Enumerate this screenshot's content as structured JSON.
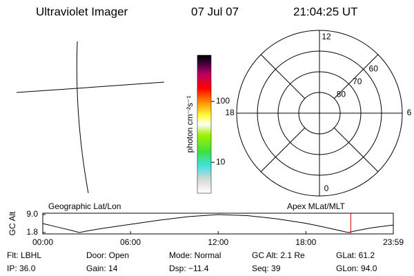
{
  "header": {
    "title": "Ultraviolet Imager",
    "date": "07 Jul 07",
    "time": "21:04:25 UT"
  },
  "colorbar": {
    "label": "photon cm⁻²s⁻¹",
    "log": true,
    "clim": [
      3.1,
      575
    ],
    "ticks": [
      100,
      10
    ]
  },
  "polar": {
    "mlt_ticks": [
      12,
      6,
      18,
      0
    ],
    "lat_lim": [
      50,
      90
    ],
    "lat_rings": [
      60,
      70,
      80
    ]
  },
  "chart_data": {
    "type": "line",
    "ylabel": "GC Alt",
    "left_label": "Geographic Lat/Lon",
    "right_label": "Apex MLat/MLT",
    "x": [
      0,
      1,
      2,
      2.5,
      3,
      4,
      6,
      8,
      10,
      12,
      14,
      16,
      18,
      19,
      20,
      20.9,
      21.5,
      22.5,
      23.98
    ],
    "series": [
      {
        "name": "GC Alt",
        "color": "#000000",
        "values": [
          5.4,
          4.0,
          2.6,
          1.8,
          2.4,
          3.4,
          5.1,
          6.8,
          8.2,
          9.0,
          8.6,
          7.3,
          5.5,
          4.3,
          3.0,
          1.8,
          2.6,
          3.7,
          4.8
        ]
      }
    ],
    "marker_x": 21.07,
    "marker_color": "#cc0000",
    "xlim": [
      0,
      23.98
    ],
    "ylim": [
      1.8,
      9.0
    ],
    "xticks": [
      {
        "value": 0,
        "label": "00:00"
      },
      {
        "value": 6,
        "label": "06:00"
      },
      {
        "value": 12,
        "label": "12:00"
      },
      {
        "value": 18,
        "label": "18:00"
      },
      {
        "value": 23.98,
        "label": "23:59"
      }
    ],
    "yticks": [
      {
        "value": 9.0,
        "label": "9.0"
      },
      {
        "value": 1.8,
        "label": "1.8"
      }
    ]
  },
  "footer": [
    [
      "Flt: LBHL",
      "Door: Open",
      "Mode: Normal",
      "GC Alt: 2.1 Re",
      "GLat: 61.2"
    ],
    [
      "IP: 36.0",
      "Gain: 14",
      "Dsp: −11.4",
      "Seq: 39",
      "GLon: 94.0"
    ]
  ]
}
